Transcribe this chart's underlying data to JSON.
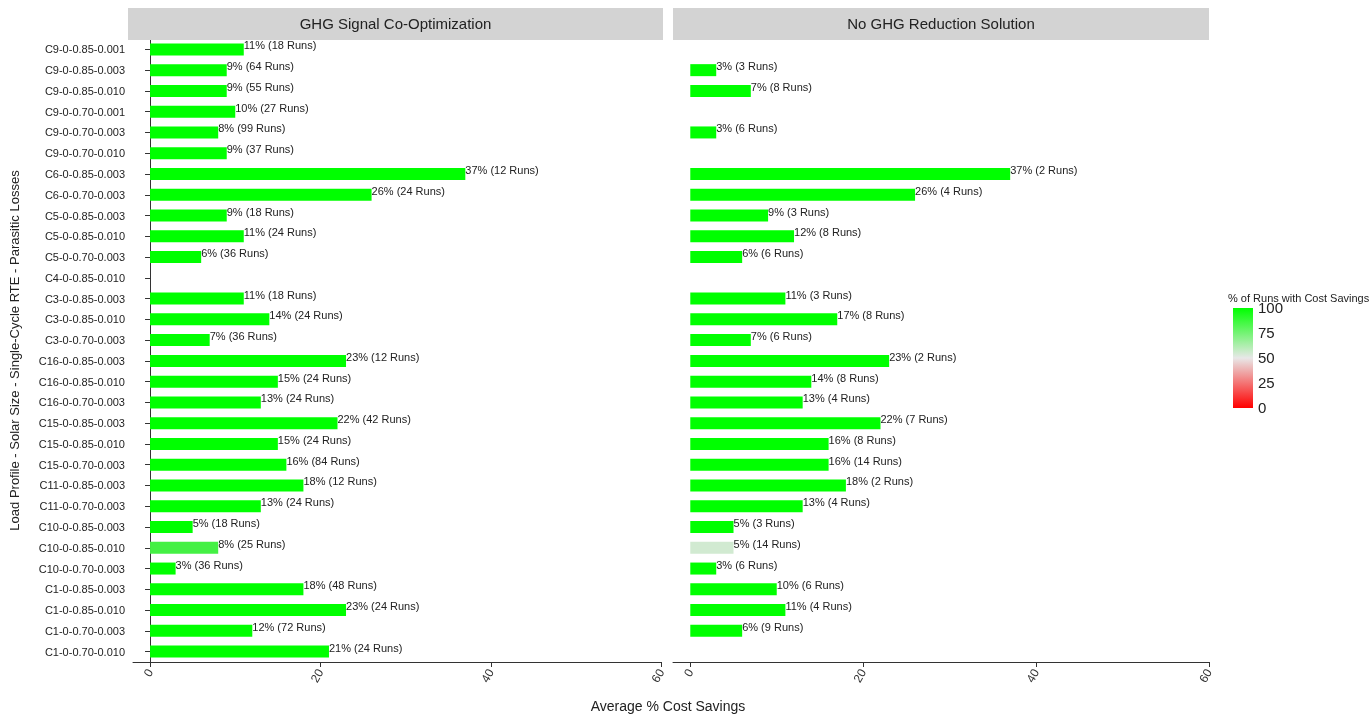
{
  "chart_data": [
    {
      "type": "bar",
      "orientation": "horizontal",
      "title": "GHG Signal Co-Optimization",
      "xlabel": "Average % Cost Savings",
      "ylabel": "Load Profile - Solar Size - Single-Cycle RTE - Parasitic Losses",
      "categories": [
        "C9-0-0.85-0.001",
        "C9-0-0.85-0.003",
        "C9-0-0.85-0.010",
        "C9-0-0.70-0.001",
        "C9-0-0.70-0.003",
        "C9-0-0.70-0.010",
        "C6-0-0.85-0.003",
        "C6-0-0.70-0.003",
        "C5-0-0.85-0.003",
        "C5-0-0.85-0.010",
        "C5-0-0.70-0.003",
        "C4-0-0.85-0.010",
        "C3-0-0.85-0.003",
        "C3-0-0.85-0.010",
        "C3-0-0.70-0.003",
        "C16-0-0.85-0.003",
        "C16-0-0.85-0.010",
        "C16-0-0.70-0.003",
        "C15-0-0.85-0.003",
        "C15-0-0.85-0.010",
        "C15-0-0.70-0.003",
        "C11-0-0.85-0.003",
        "C11-0-0.70-0.003",
        "C10-0-0.85-0.003",
        "C10-0-0.85-0.010",
        "C10-0-0.70-0.003",
        "C1-0-0.85-0.003",
        "C1-0-0.85-0.010",
        "C1-0-0.70-0.003",
        "C1-0-0.70-0.010"
      ],
      "values": [
        11,
        9,
        9,
        10,
        8,
        9,
        37,
        26,
        9,
        11,
        6,
        null,
        11,
        14,
        7,
        23,
        15,
        13,
        22,
        15,
        16,
        18,
        13,
        5,
        8,
        3,
        18,
        23,
        12,
        21
      ],
      "value_labels": [
        "11% (18 Runs)",
        "9% (64 Runs)",
        "9% (55 Runs)",
        "10% (27 Runs)",
        "8% (99 Runs)",
        "9% (37 Runs)",
        "37% (12 Runs)",
        "26% (24 Runs)",
        "9% (18 Runs)",
        "11% (24 Runs)",
        "6% (36 Runs)",
        null,
        "11% (18 Runs)",
        "14% (24 Runs)",
        "7% (36 Runs)",
        "23% (12 Runs)",
        "15% (24 Runs)",
        "13% (24 Runs)",
        "22% (42 Runs)",
        "15% (24 Runs)",
        "16% (84 Runs)",
        "18% (12 Runs)",
        "13% (24 Runs)",
        "5% (18 Runs)",
        "8% (25 Runs)",
        "3% (36 Runs)",
        "18% (48 Runs)",
        "23% (24 Runs)",
        "12% (72 Runs)",
        "21% (24 Runs)"
      ],
      "colors": [
        "#00ff00",
        "#00ff00",
        "#00ff00",
        "#00ff00",
        "#00ff00",
        "#00ff00",
        "#00ff00",
        "#00ff00",
        "#00ff00",
        "#00ff00",
        "#00ff00",
        "#00ff00",
        "#00ff00",
        "#00ff00",
        "#00ff00",
        "#00ff00",
        "#00ff00",
        "#00ff00",
        "#00ff00",
        "#00ff00",
        "#00ff00",
        "#00ff00",
        "#00ff00",
        "#00ff00",
        "#44f044",
        "#00ff00",
        "#00ff00",
        "#00ff00",
        "#00ff00",
        "#00ff00"
      ],
      "xlim": [
        -2,
        60
      ],
      "xticks": [
        0,
        20,
        40,
        60
      ]
    },
    {
      "type": "bar",
      "orientation": "horizontal",
      "title": "No GHG Reduction Solution",
      "clabel": "% of Runs with Cost Savings",
      "clim": [
        0,
        100
      ],
      "cticks": [
        0,
        25,
        50,
        75,
        100
      ],
      "tick_labels": "x",
      "values": [
        null,
        3,
        7,
        null,
        3,
        null,
        37,
        26,
        9,
        12,
        6,
        null,
        11,
        17,
        7,
        23,
        14,
        13,
        22,
        16,
        16,
        18,
        13,
        5,
        5,
        3,
        10,
        11,
        6,
        null
      ],
      "value_labels": [
        null,
        "3% (3 Runs)",
        "7% (8 Runs)",
        null,
        "3% (6 Runs)",
        null,
        "37% (2 Runs)",
        "26% (4 Runs)",
        "9% (3 Runs)",
        "12% (8 Runs)",
        "6% (6 Runs)",
        null,
        "11% (3 Runs)",
        "17% (8 Runs)",
        "7% (6 Runs)",
        "23% (2 Runs)",
        "14% (8 Runs)",
        "13% (4 Runs)",
        "22% (7 Runs)",
        "16% (8 Runs)",
        "16% (14 Runs)",
        "18% (2 Runs)",
        "13% (4 Runs)",
        "5% (3 Runs)",
        "5% (14 Runs)",
        "3% (6 Runs)",
        "10% (6 Runs)",
        "11% (4 Runs)",
        "6% (9 Runs)",
        null
      ],
      "cvalues": [
        null,
        100,
        100,
        null,
        100,
        null,
        100,
        100,
        100,
        100,
        100,
        null,
        100,
        100,
        100,
        100,
        100,
        100,
        100,
        100,
        100,
        100,
        100,
        100,
        55,
        100,
        100,
        100,
        100,
        null
      ],
      "xlim": [
        -2,
        60
      ],
      "xticks": [
        0,
        20,
        40,
        60
      ]
    }
  ]
}
